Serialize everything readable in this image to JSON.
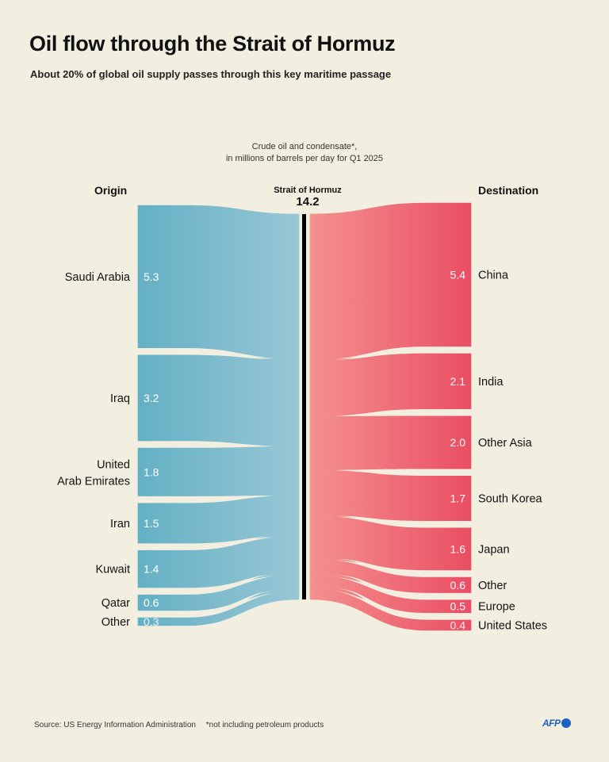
{
  "header": {
    "title": "Oil flow through the Strait of Hormuz",
    "subtitle": "About 20% of global oil supply passes through this key maritime passage"
  },
  "unit_note": {
    "line1": "Crude oil and condensate*,",
    "line2": "in millions of barrels per day for Q1 2025"
  },
  "columns": {
    "origin": "Origin",
    "destination": "Destination",
    "center_label": "Strait of Hormuz",
    "center_value": "14.2"
  },
  "footer": {
    "source": "Source: US Energy Information Administration",
    "note": "*not including petroleum products",
    "logo": "AFP"
  },
  "colors": {
    "origin_dark": "#64b0c4",
    "origin_light": "#98c7d6",
    "dest_light": "#f4918f",
    "dest_dark": "#ea4e64",
    "background": "#f2efe1",
    "logo": "#1f5fbf"
  },
  "chart_data": {
    "type": "sankey",
    "title": "Oil flow through the Strait of Hormuz",
    "unit": "millions of barrels per day (Q1 2025)",
    "center": {
      "name": "Strait of Hormuz",
      "value": 14.2
    },
    "origins": [
      {
        "name": "Saudi Arabia",
        "value": 5.3
      },
      {
        "name": "Iraq",
        "value": 3.2
      },
      {
        "name": "United Arab Emirates",
        "lines": [
          "United",
          "Arab Emirates"
        ],
        "value": 1.8
      },
      {
        "name": "Iran",
        "value": 1.5
      },
      {
        "name": "Kuwait",
        "value": 1.4
      },
      {
        "name": "Qatar",
        "value": 0.6
      },
      {
        "name": "Other",
        "value": 0.3
      }
    ],
    "destinations": [
      {
        "name": "China",
        "value": 5.4
      },
      {
        "name": "India",
        "value": 2.1
      },
      {
        "name": "Other Asia",
        "value": 2.0
      },
      {
        "name": "South Korea",
        "value": 1.7
      },
      {
        "name": "Japan",
        "value": 1.6
      },
      {
        "name": "Other",
        "value": 0.6
      },
      {
        "name": "Europe",
        "value": 0.5
      },
      {
        "name": "United States",
        "value": 0.4
      }
    ]
  }
}
